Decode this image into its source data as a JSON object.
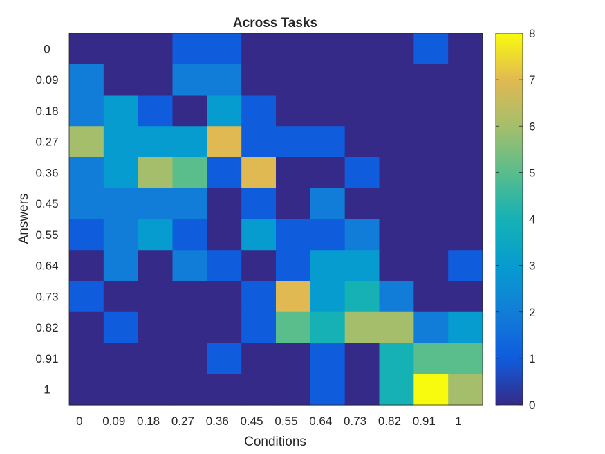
{
  "chart_data": {
    "type": "heatmap",
    "title": "Across Tasks",
    "xlabel": "Conditions",
    "ylabel": "Answers",
    "x_tick_labels": [
      "0",
      "0.09",
      "0.18",
      "0.27",
      "0.36",
      "0.45",
      "0.55",
      "0.64",
      "0.73",
      "0.82",
      "0.91",
      "1"
    ],
    "y_tick_labels": [
      "0",
      "0.09",
      "0.18",
      "0.27",
      "0.36",
      "0.45",
      "0.55",
      "0.64",
      "0.73",
      "0.82",
      "0.91",
      "1"
    ],
    "values": [
      [
        0,
        0,
        0,
        1,
        1,
        0,
        0,
        0,
        0,
        0,
        1,
        0
      ],
      [
        2,
        0,
        0,
        2,
        2,
        0,
        0,
        0,
        0,
        0,
        0,
        0
      ],
      [
        2,
        3,
        1,
        0,
        3,
        1,
        0,
        0,
        0,
        0,
        0,
        0
      ],
      [
        6,
        3,
        3,
        3,
        7,
        1,
        1,
        1,
        0,
        0,
        0,
        0
      ],
      [
        2,
        3,
        6,
        5,
        1,
        7,
        0,
        0,
        1,
        0,
        0,
        0
      ],
      [
        2,
        2,
        2,
        2,
        0,
        1,
        0,
        2,
        0,
        0,
        0,
        0
      ],
      [
        1,
        2,
        3,
        1,
        0,
        3,
        1,
        1,
        2,
        0,
        0,
        0
      ],
      [
        0,
        2,
        0,
        2,
        1,
        0,
        1,
        3,
        3,
        0,
        0,
        1
      ],
      [
        1,
        0,
        0,
        0,
        0,
        1,
        7,
        3,
        4,
        2,
        0,
        0
      ],
      [
        0,
        1,
        0,
        0,
        0,
        1,
        5,
        4,
        6,
        6,
        2,
        3
      ],
      [
        0,
        0,
        0,
        0,
        1,
        0,
        0,
        1,
        0,
        4,
        5,
        5
      ],
      [
        0,
        0,
        0,
        0,
        0,
        0,
        0,
        1,
        0,
        4,
        8,
        6
      ]
    ],
    "colorbar": {
      "min": 0,
      "max": 8,
      "ticks": [
        "0",
        "1",
        "2",
        "3",
        "4",
        "5",
        "6",
        "7",
        "8"
      ],
      "colormap": "parula"
    }
  }
}
